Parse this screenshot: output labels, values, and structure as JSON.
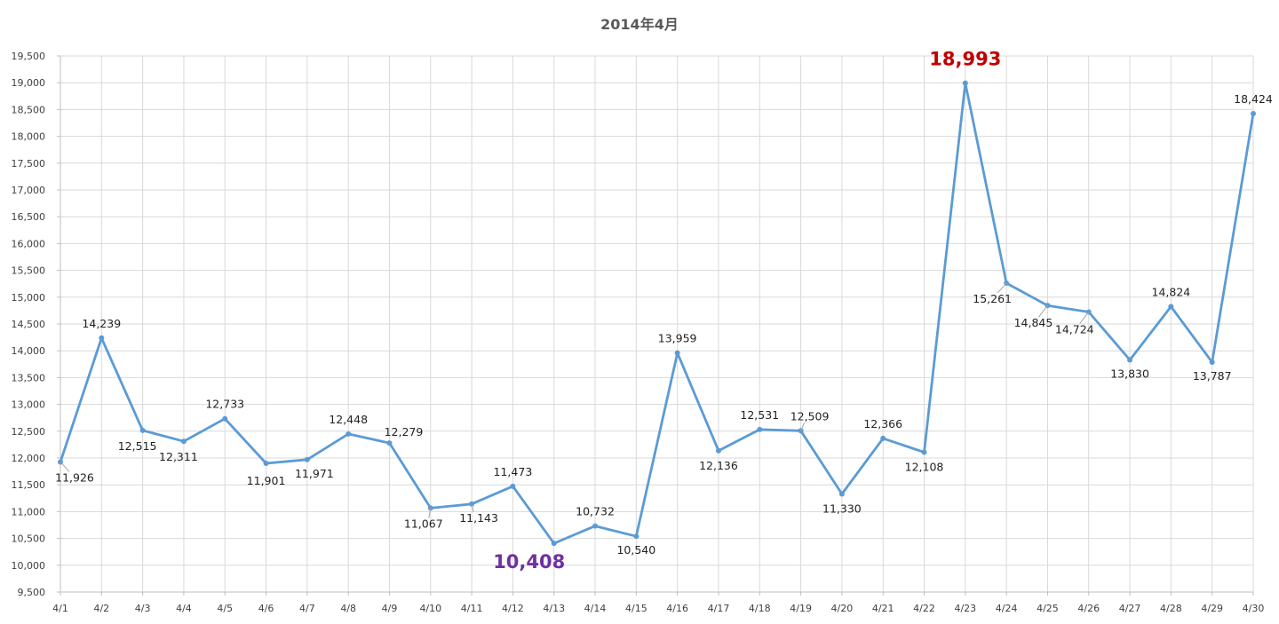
{
  "chart_data": {
    "type": "line",
    "title": "2014年4月",
    "xlabel": "",
    "ylabel": "",
    "ylim": [
      9500,
      19500
    ],
    "ystep": 500,
    "grid": true,
    "legend": "none",
    "categories": [
      "4/1",
      "4/2",
      "4/3",
      "4/4",
      "4/5",
      "4/6",
      "4/7",
      "4/8",
      "4/9",
      "4/10",
      "4/11",
      "4/12",
      "4/13",
      "4/14",
      "4/15",
      "4/16",
      "4/17",
      "4/18",
      "4/19",
      "4/20",
      "4/21",
      "4/22",
      "4/23",
      "4/24",
      "4/25",
      "4/26",
      "4/27",
      "4/28",
      "4/29",
      "4/30"
    ],
    "y_ticks": [
      "9,500",
      "10,000",
      "10,500",
      "11,000",
      "11,500",
      "12,000",
      "12,500",
      "13,000",
      "13,500",
      "14,000",
      "14,500",
      "15,000",
      "15,500",
      "16,000",
      "16,500",
      "17,000",
      "17,500",
      "18,000",
      "18,500",
      "19,000",
      "19,500"
    ],
    "series": [
      {
        "values": [
          11926,
          14239,
          12515,
          12311,
          12733,
          11901,
          11971,
          12448,
          12279,
          11067,
          11143,
          11473,
          10408,
          10732,
          10540,
          13959,
          12136,
          12531,
          12509,
          11330,
          12366,
          12108,
          18993,
          15261,
          14845,
          14724,
          13830,
          14824,
          13787,
          18424
        ],
        "labels": [
          "11,926",
          "14,239",
          "12,515",
          "12,311",
          "12,733",
          "11,901",
          "11,971",
          "12,448",
          "12,279",
          "11,067",
          "11,143",
          "11,473",
          "10,408",
          "10,732",
          "10,540",
          "13,959",
          "12,136",
          "12,531",
          "12,509",
          "11,330",
          "12,366",
          "12,108",
          "18,993",
          "15,261",
          "14,845",
          "14,724",
          "13,830",
          "14,824",
          "13,787",
          "18,424"
        ],
        "color": "#5B9BD5"
      }
    ],
    "highlights": {
      "max": {
        "index": 22,
        "color": "#C00000"
      },
      "min": {
        "index": 12,
        "color": "#7030A0"
      }
    }
  }
}
